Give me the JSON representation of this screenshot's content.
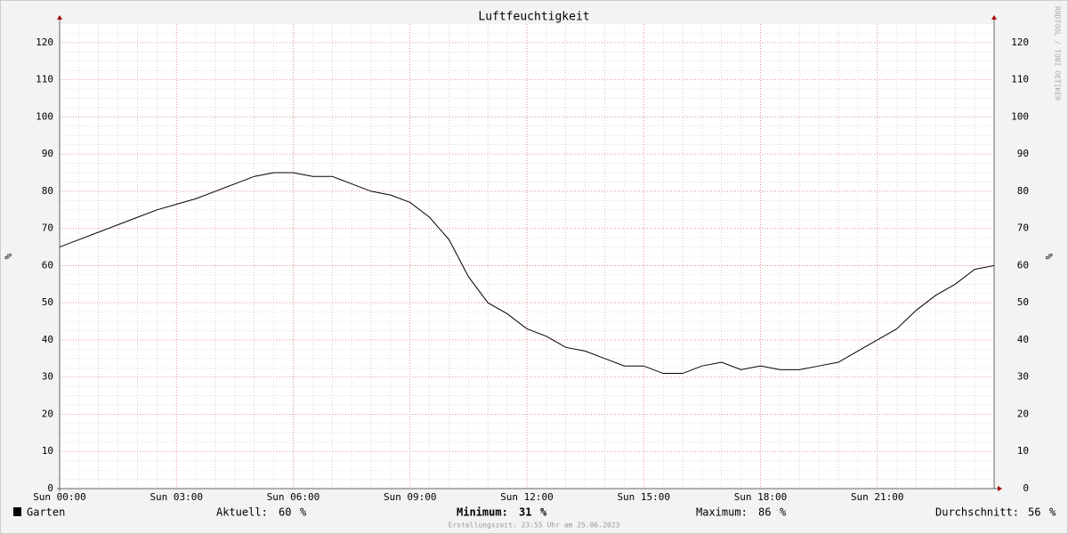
{
  "chart_data": {
    "type": "line",
    "title": "Luftfeuchtigkeit",
    "y_label": "%",
    "watermark": "RRDTOOL / TOBI OETIKER",
    "x": [
      0,
      0.5,
      1,
      1.5,
      2,
      2.5,
      3,
      3.5,
      4,
      4.5,
      5,
      5.5,
      6,
      6.5,
      7,
      7.5,
      8,
      8.5,
      9,
      9.5,
      10,
      10.5,
      11,
      11.5,
      12,
      12.5,
      13,
      13.5,
      14,
      14.5,
      15,
      15.5,
      16,
      16.5,
      17,
      17.5,
      18,
      18.5,
      19,
      19.5,
      20,
      20.5,
      21,
      21.5,
      22,
      22.5,
      23,
      23.5,
      24
    ],
    "series": [
      {
        "name": "Garten",
        "color": "#000000",
        "values": [
          65,
          67,
          69,
          71,
          73,
          75,
          76.5,
          78,
          80,
          82,
          84,
          85,
          85,
          84,
          84,
          82,
          80,
          79,
          77,
          73,
          67,
          57,
          50,
          47,
          43,
          41,
          38,
          37,
          35,
          33,
          33,
          31,
          31,
          33,
          34,
          32,
          33,
          32,
          32,
          33,
          34,
          37,
          40,
          43,
          48,
          52,
          55,
          59,
          60
        ]
      }
    ],
    "xlim": [
      0,
      24
    ],
    "xticks": [
      {
        "value": 0,
        "label": "Sun 00:00"
      },
      {
        "value": 3,
        "label": "Sun 03:00"
      },
      {
        "value": 6,
        "label": "Sun 06:00"
      },
      {
        "value": 9,
        "label": "Sun 09:00"
      },
      {
        "value": 12,
        "label": "Sun 12:00"
      },
      {
        "value": 15,
        "label": "Sun 15:00"
      },
      {
        "value": 18,
        "label": "Sun 18:00"
      },
      {
        "value": 21,
        "label": "Sun 21:00"
      }
    ],
    "ylim": [
      0,
      125
    ],
    "yticks": [
      0,
      10,
      20,
      30,
      40,
      50,
      60,
      70,
      80,
      90,
      100,
      110,
      120
    ],
    "grid": true,
    "stats": [
      {
        "label": "Aktuell:",
        "value": 60,
        "unit": "%",
        "bold": false
      },
      {
        "label": "Minimum:",
        "value": 31,
        "unit": "%",
        "bold": true
      },
      {
        "label": "Maximum:",
        "value": 86,
        "unit": "%",
        "bold": false
      },
      {
        "label": "Durchschnitt:",
        "value": 56,
        "unit": "%",
        "bold": false
      }
    ],
    "footer": "Erstellungszeit: 23:55 Uhr am 25.06.2023"
  }
}
